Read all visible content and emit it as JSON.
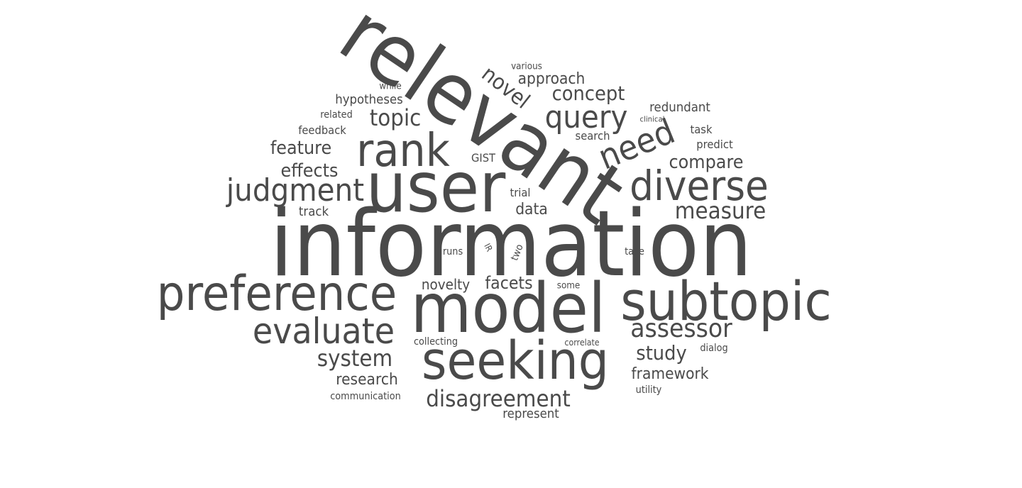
{
  "word_color": "#4a4a4a",
  "background_color": "#ffffff",
  "words": [
    {
      "key": "information",
      "text": "information"
    },
    {
      "key": "relevant",
      "text": "relevant"
    },
    {
      "key": "user",
      "text": "user"
    },
    {
      "key": "model",
      "text": "model"
    },
    {
      "key": "subtopic",
      "text": "subtopic"
    },
    {
      "key": "seeking",
      "text": "seeking"
    },
    {
      "key": "preference",
      "text": "preference"
    },
    {
      "key": "rank",
      "text": "rank"
    },
    {
      "key": "diverse",
      "text": "diverse"
    },
    {
      "key": "evaluate",
      "text": "evaluate"
    },
    {
      "key": "judgment",
      "text": "judgment"
    },
    {
      "key": "need",
      "text": "need"
    },
    {
      "key": "query",
      "text": "query"
    },
    {
      "key": "novel",
      "text": "novel"
    },
    {
      "key": "disagreement",
      "text": "disagreement"
    },
    {
      "key": "assessor",
      "text": "assessor"
    },
    {
      "key": "measure",
      "text": "measure"
    },
    {
      "key": "system",
      "text": "system"
    },
    {
      "key": "topic",
      "text": "topic"
    },
    {
      "key": "concept",
      "text": "concept"
    },
    {
      "key": "compare",
      "text": "compare"
    },
    {
      "key": "feature",
      "text": "feature"
    },
    {
      "key": "effects",
      "text": "effects"
    },
    {
      "key": "study",
      "text": "study"
    },
    {
      "key": "framework",
      "text": "framework"
    },
    {
      "key": "facets",
      "text": "facets"
    },
    {
      "key": "research",
      "text": "research"
    },
    {
      "key": "approach",
      "text": "approach"
    },
    {
      "key": "novelty",
      "text": "novelty"
    },
    {
      "key": "data",
      "text": "data"
    },
    {
      "key": "hypotheses",
      "text": "hypotheses"
    },
    {
      "key": "redundant",
      "text": "redundant"
    },
    {
      "key": "represent",
      "text": "represent"
    },
    {
      "key": "feedback",
      "text": "feedback"
    },
    {
      "key": "predict",
      "text": "predict"
    },
    {
      "key": "track",
      "text": "track"
    },
    {
      "key": "search",
      "text": "search"
    },
    {
      "key": "communication",
      "text": "communication"
    },
    {
      "key": "collecting",
      "text": "collecting"
    },
    {
      "key": "utility",
      "text": "utility"
    },
    {
      "key": "GIST",
      "text": "GIST"
    },
    {
      "key": "trial",
      "text": "trial"
    },
    {
      "key": "task",
      "text": "task"
    },
    {
      "key": "dialog",
      "text": "dialog"
    },
    {
      "key": "related",
      "text": "related"
    },
    {
      "key": "various",
      "text": "various"
    },
    {
      "key": "while",
      "text": "while"
    },
    {
      "key": "runs",
      "text": "runs"
    },
    {
      "key": "two",
      "text": "two"
    },
    {
      "key": "take",
      "text": "take"
    },
    {
      "key": "some",
      "text": "some"
    },
    {
      "key": "IR",
      "text": "IR"
    },
    {
      "key": "correlate",
      "text": "correlate"
    },
    {
      "key": "clinical",
      "text": "clinical"
    }
  ]
}
